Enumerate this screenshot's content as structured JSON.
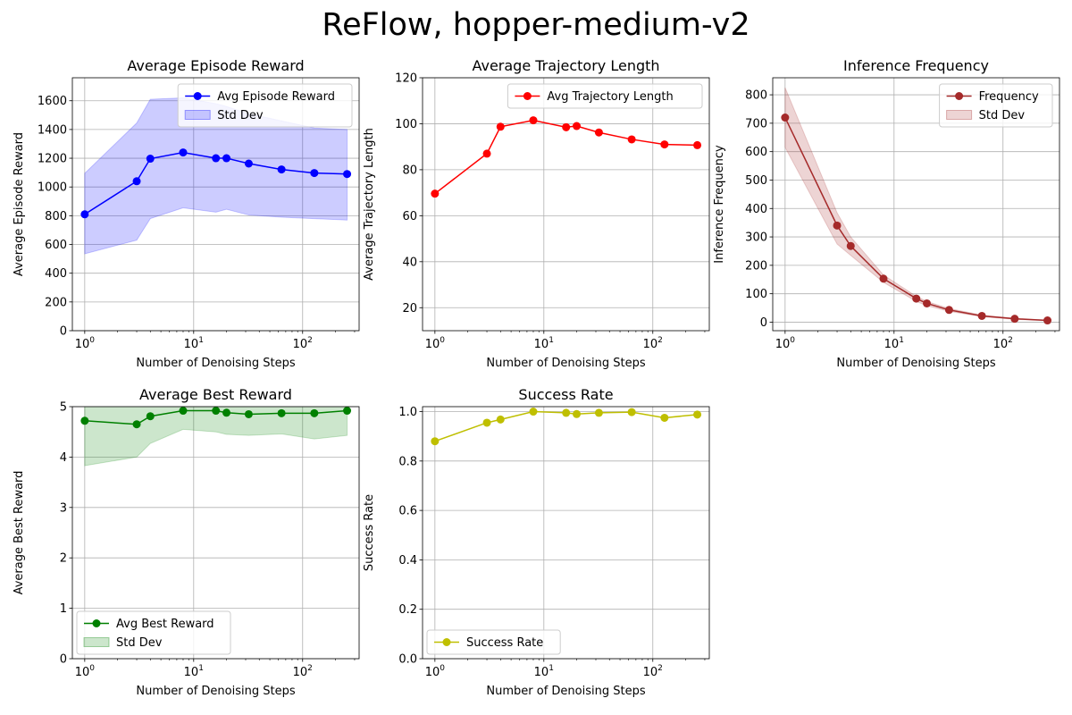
{
  "figure": {
    "title": "ReFlow, hopper-medium-v2"
  },
  "chart_data": [
    {
      "type": "line",
      "title": "Average Episode Reward",
      "xlabel": "Number of Denoising Steps",
      "ylabel": "Average Episode Reward",
      "xscale": "log",
      "xlim": [
        0.77,
        330
      ],
      "ylim": [
        0,
        1760
      ],
      "yticks": [
        0,
        200,
        400,
        600,
        800,
        1000,
        1200,
        1400,
        1600
      ],
      "grid": true,
      "legend": "top-right",
      "color": "#0000ff",
      "x": [
        1,
        3,
        4,
        8,
        16,
        20,
        32,
        64,
        128,
        256
      ],
      "series": [
        {
          "name": "Avg Episode Reward",
          "values": [
            810,
            1040,
            1197,
            1240,
            1200,
            1200,
            1163,
            1122,
            1097,
            1090
          ]
        }
      ],
      "band": {
        "name": "Std Dev",
        "color": "#0000ff",
        "opacity": 0.2,
        "lower": [
          535,
          630,
          780,
          855,
          825,
          845,
          805,
          790,
          780,
          770
        ],
        "upper": [
          1095,
          1445,
          1610,
          1620,
          1580,
          1560,
          1510,
          1460,
          1410,
          1400
        ]
      }
    },
    {
      "type": "line",
      "title": "Average Trajectory Length",
      "xlabel": "Number of Denoising Steps",
      "ylabel": "Average Trajectory Length",
      "xscale": "log",
      "xlim": [
        0.77,
        330
      ],
      "ylim": [
        10,
        120
      ],
      "yticks": [
        20,
        40,
        60,
        80,
        100,
        120
      ],
      "grid": true,
      "legend": "top-right",
      "color": "#ff0000",
      "x": [
        1,
        3,
        4,
        8,
        16,
        20,
        32,
        64,
        128,
        256
      ],
      "series": [
        {
          "name": "Avg Trajectory Length",
          "values": [
            69.6,
            87,
            98.7,
            101.5,
            98.5,
            99,
            96.2,
            93.2,
            91,
            90.7
          ]
        }
      ]
    },
    {
      "type": "line",
      "title": "Inference Frequency",
      "xlabel": "Number of Denoising Steps",
      "ylabel": "Inference Frequency",
      "xscale": "log",
      "xlim": [
        0.77,
        330
      ],
      "ylim": [
        -30,
        860
      ],
      "yticks": [
        0,
        100,
        200,
        300,
        400,
        500,
        600,
        700,
        800
      ],
      "grid": true,
      "legend": "top-right",
      "color": "#a52a2a",
      "x": [
        1,
        3,
        4,
        8,
        16,
        20,
        32,
        64,
        128,
        256
      ],
      "series": [
        {
          "name": "Frequency",
          "values": [
            720,
            340,
            268,
            153,
            83,
            66,
            43,
            22,
            12,
            6
          ]
        }
      ],
      "band": {
        "name": "Std Dev",
        "color": "#a52a2a",
        "opacity": 0.2,
        "lower": [
          615,
          275,
          235,
          140,
          73,
          58,
          38,
          19,
          10,
          5
        ],
        "upper": [
          825,
          385,
          300,
          166,
          91,
          73,
          48,
          25,
          14,
          7
        ]
      }
    },
    {
      "type": "line",
      "title": "Average Best Reward",
      "xlabel": "Number of Denoising Steps",
      "ylabel": "Average Best Reward",
      "xscale": "log",
      "xlim": [
        0.77,
        330
      ],
      "ylim": [
        0,
        5
      ],
      "yticks": [
        0,
        1,
        2,
        3,
        4,
        5
      ],
      "grid": true,
      "legend": "bottom-left",
      "color": "#008000",
      "x": [
        1,
        3,
        4,
        8,
        16,
        20,
        32,
        64,
        128,
        256
      ],
      "series": [
        {
          "name": "Avg Best Reward",
          "values": [
            4.72,
            4.65,
            4.81,
            4.92,
            4.92,
            4.88,
            4.85,
            4.87,
            4.87,
            4.92
          ]
        }
      ],
      "band": {
        "name": "Std Dev",
        "color": "#008000",
        "opacity": 0.2,
        "lower": [
          3.83,
          4.0,
          4.27,
          4.55,
          4.5,
          4.45,
          4.43,
          4.46,
          4.36,
          4.43
        ],
        "upper": [
          5.35,
          5.35,
          5.35,
          5.35,
          5.35,
          5.35,
          5.35,
          5.35,
          5.35,
          5.35
        ]
      }
    },
    {
      "type": "line",
      "title": "Success Rate",
      "xlabel": "Number of Denoising Steps",
      "ylabel": "Success Rate",
      "xscale": "log",
      "xlim": [
        0.77,
        330
      ],
      "ylim": [
        0,
        1.02
      ],
      "yticks": [
        0.0,
        0.2,
        0.4,
        0.6,
        0.8,
        1.0
      ],
      "grid": true,
      "legend": "bottom-left",
      "color": "#bfbf00",
      "x": [
        1,
        3,
        4,
        8,
        16,
        20,
        32,
        64,
        128,
        256
      ],
      "series": [
        {
          "name": "Success Rate",
          "values": [
            0.88,
            0.955,
            0.968,
            1.0,
            0.995,
            0.99,
            0.995,
            0.998,
            0.975,
            0.988
          ]
        }
      ]
    }
  ]
}
